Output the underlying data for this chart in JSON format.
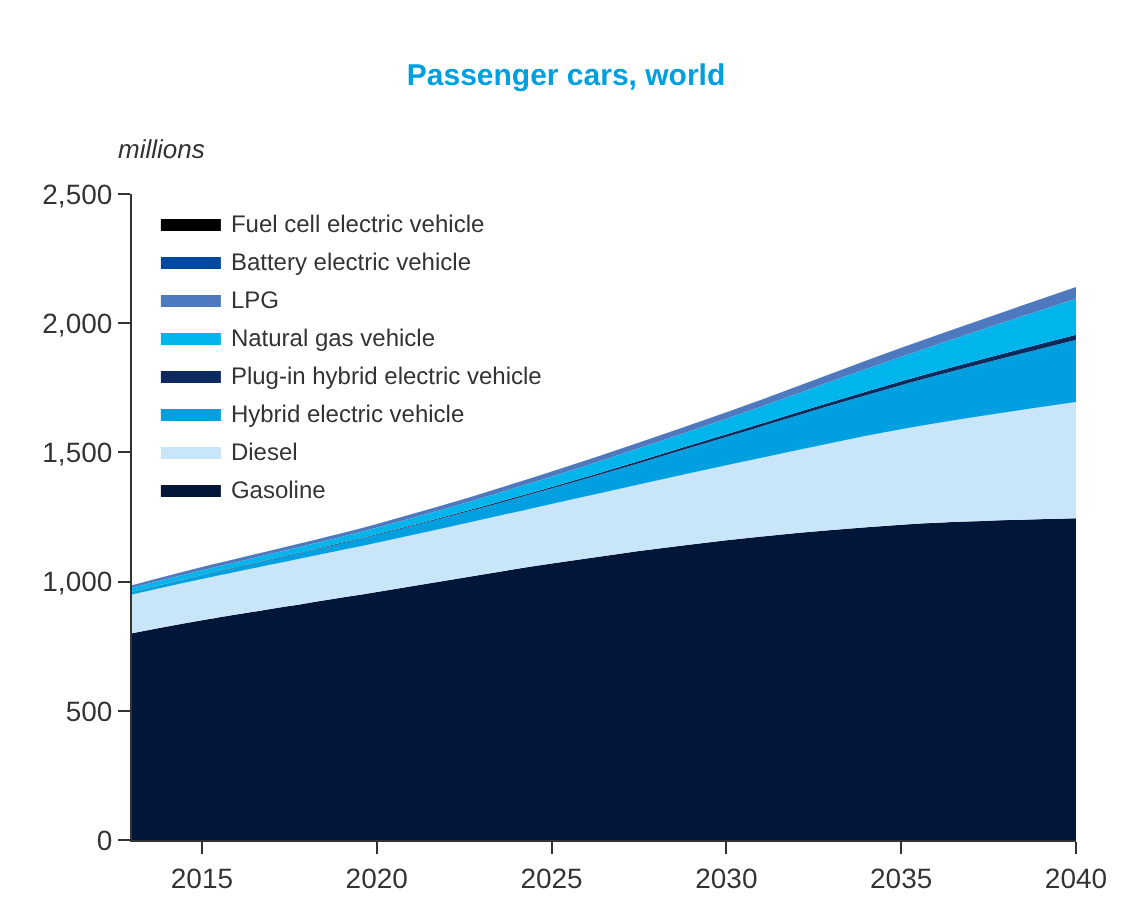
{
  "chart_data": {
    "type": "area",
    "stacked": true,
    "title": "Passenger cars, world",
    "ylabel": "millions",
    "x": [
      2013,
      2015,
      2020,
      2025,
      2030,
      2035,
      2040
    ],
    "series": [
      {
        "name": "Gasoline",
        "color": "#021639",
        "values": [
          800,
          850,
          960,
          1070,
          1160,
          1220,
          1245
        ]
      },
      {
        "name": "Diesel",
        "color": "#c8e6f8",
        "values": [
          150,
          160,
          190,
          230,
          290,
          370,
          450
        ]
      },
      {
        "name": "Hybrid electric vehicle",
        "color": "#009fe0",
        "values": [
          10,
          15,
          30,
          60,
          110,
          170,
          240
        ]
      },
      {
        "name": "Plug-in hybrid electric vehicle",
        "color": "#0c2a5e",
        "values": [
          1,
          1,
          3,
          6,
          10,
          15,
          20
        ]
      },
      {
        "name": "Natural gas vehicle",
        "color": "#00b5ec",
        "values": [
          15,
          18,
          25,
          40,
          60,
          95,
          140
        ]
      },
      {
        "name": "LPG",
        "color": "#4f79bf",
        "values": [
          10,
          12,
          15,
          20,
          25,
          35,
          45
        ]
      },
      {
        "name": "Battery electric vehicle",
        "color": "#0048a0",
        "values": [
          null,
          null,
          null,
          null,
          null,
          null,
          null
        ]
      },
      {
        "name": "Fuel cell electric vehicle",
        "color": "#000000",
        "values": [
          null,
          null,
          null,
          null,
          null,
          null,
          null
        ]
      }
    ],
    "xlim": [
      2013,
      2040
    ],
    "xticks": [
      2015,
      2020,
      2025,
      2030,
      2035,
      2040
    ],
    "ylim": [
      0,
      2500
    ],
    "yticks": [
      0,
      500,
      {
        "value": 1000,
        "label": "1,000"
      },
      {
        "value": 1500,
        "label": "1,500"
      },
      {
        "value": 2000,
        "label": "2,000"
      },
      {
        "value": 2500,
        "label": "2,500"
      }
    ],
    "legend": "top left"
  }
}
